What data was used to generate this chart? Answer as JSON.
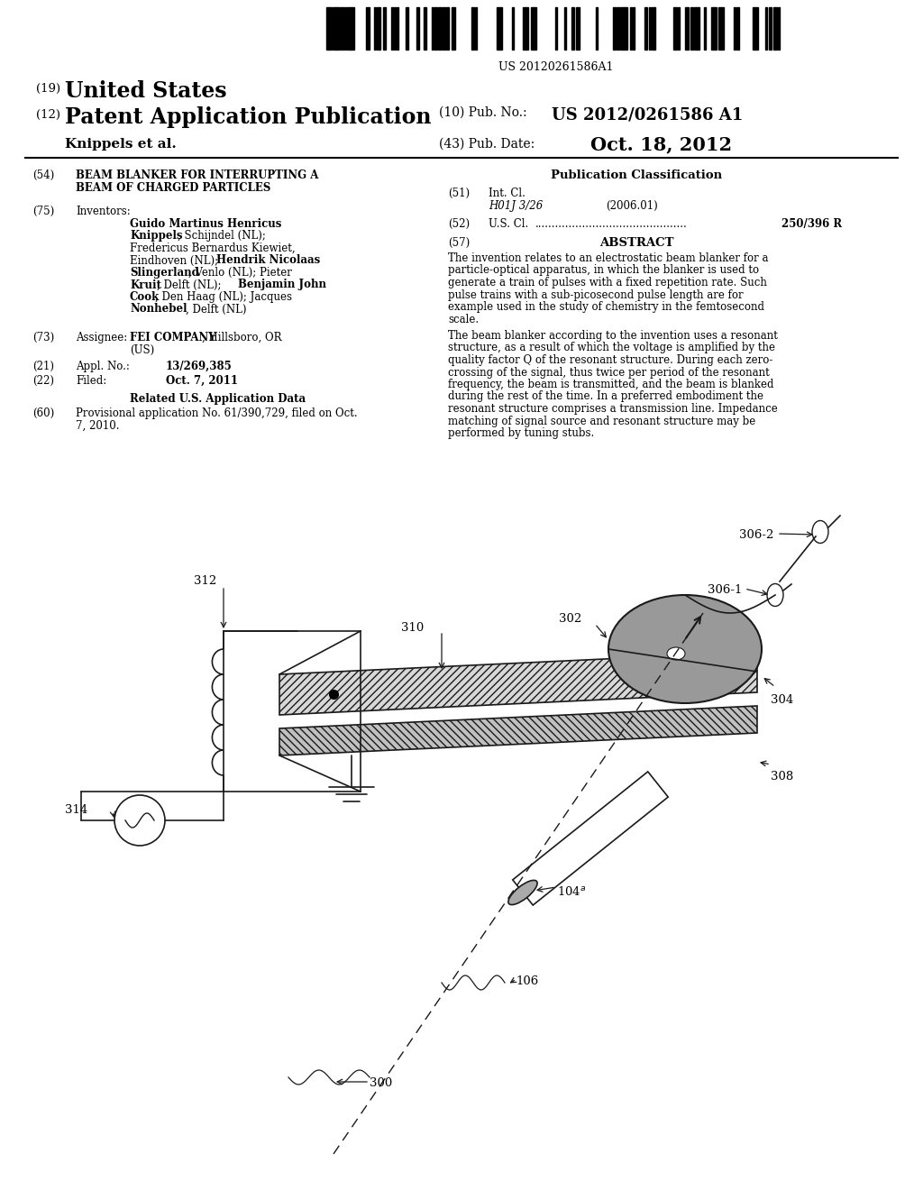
{
  "bg": "#ffffff",
  "barcode_text": "US 20120261586A1",
  "country_num": "(19)",
  "country": "United States",
  "type_num": "(12)",
  "type_text": "Patent Application Publication",
  "pub_num_label": "(10) Pub. No.:",
  "pub_num": "US 2012/0261586 A1",
  "author": "Knippels et al.",
  "date_label": "(43) Pub. Date:",
  "date_value": "Oct. 18, 2012",
  "title_54_a": "BEAM BLANKER FOR INTERRUPTING A",
  "title_54_b": "BEAM OF CHARGED PARTICLES",
  "inventors_label": "Inventors:",
  "inv_line0": "Guido Martinus Henricus",
  "inv_line1_b": "Knippels",
  "inv_line1_r": ", Schijndel (NL);",
  "inv_line2": "Fredericus Bernardus Kiewiet,",
  "inv_line3_r": "Eindhoven (NL); ",
  "inv_line3_b": "Hendrik Nicolaas",
  "inv_line4_b": "Slingerland",
  "inv_line4_r": ", Venlo (NL); Pieter",
  "inv_line5_b1": "Kruit",
  "inv_line5_r": ", Delft (NL); ",
  "inv_line5_b2": "Benjamin John",
  "inv_line6_b": "Cook",
  "inv_line6_r": ", Den Haag (NL); Jacques",
  "inv_line7_b": "Nonhebel",
  "inv_line7_r": ", Delft (NL)",
  "assignee_label": "Assignee:",
  "assignee_bold": "FEI COMPANY",
  "assignee_rest": ", Hillsboro, OR",
  "assignee_line2": "(US)",
  "appl_label": "Appl. No.:",
  "appl_value": "13/269,385",
  "filed_label": "Filed:",
  "filed_value": "Oct. 7, 2011",
  "related_title": "Related U.S. Application Data",
  "related_text_a": "Provisional application No. 61/390,729, filed on Oct.",
  "related_text_b": "7, 2010.",
  "pub_class_title": "Publication Classification",
  "int_cl_label": "Int. Cl.",
  "int_cl_code": "H01J 3/26",
  "int_cl_year": "(2006.01)",
  "us_cl_label": "U.S. Cl.",
  "us_cl_dots": ".............................................",
  "us_cl_value": "250/396 R",
  "abstract_title": "ABSTRACT",
  "abs_p1_lines": [
    "The invention relates to an electrostatic beam blanker for a",
    "particle-optical apparatus, in which the blanker is used to",
    "generate a train of pulses with a fixed repetition rate. Such",
    "pulse trains with a sub-picosecond pulse length are for",
    "example used in the study of chemistry in the femtosecond",
    "scale."
  ],
  "abs_p2_lines": [
    "The beam blanker according to the invention uses a resonant",
    "structure, as a result of which the voltage is amplified by the",
    "quality factor Q of the resonant structure. During each zero-",
    "crossing of the signal, thus twice per period of the resonant",
    "frequency, the beam is transmitted, and the beam is blanked",
    "during the rest of the time. In a preferred embodiment the",
    "resonant structure comprises a transmission line. Impedance",
    "matching of signal source and resonant structure may be",
    "performed by tuning stubs."
  ],
  "diag_lc": "#1a1a1a",
  "diag_plate_hatch": "#555555",
  "diag_gray_disk": "#999999"
}
